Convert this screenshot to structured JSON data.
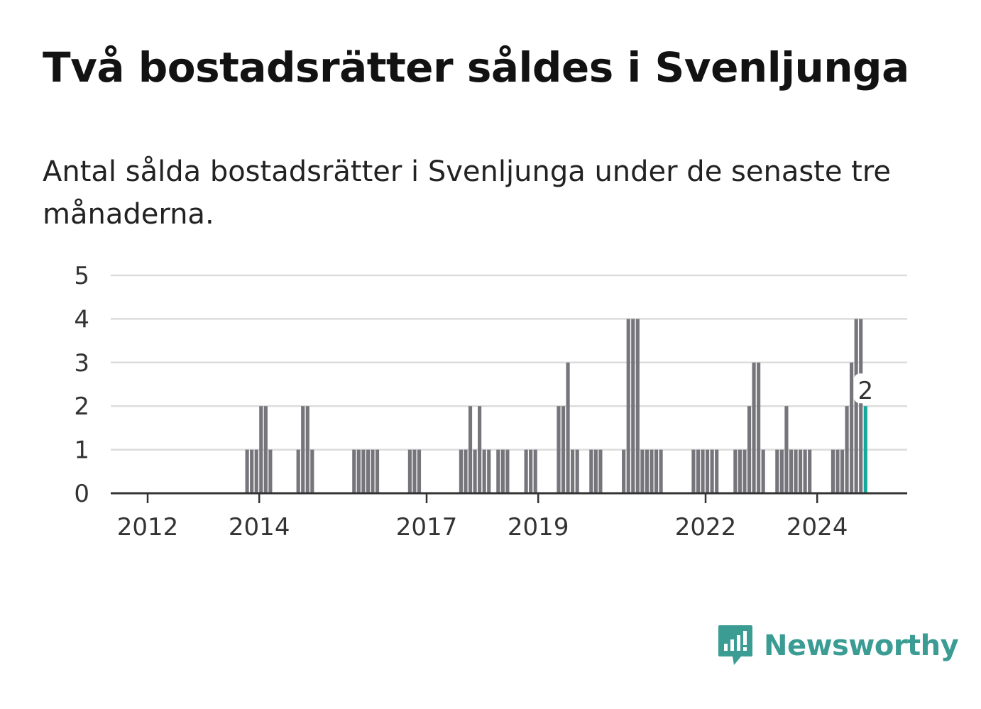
{
  "title": "Två bostadsrätter såldes i Svenljunga",
  "subtitle": "Antal sålda bostadsrätter i Svenljunga under de senaste tre månaderna.",
  "brand": {
    "name": "Newsworthy",
    "color": "#3a9c93",
    "icon": "newsworthy-logo-icon"
  },
  "chart_data": {
    "type": "bar",
    "ylim": [
      0,
      5
    ],
    "y_ticks": [
      "0",
      "1",
      "2",
      "3",
      "4",
      "5"
    ],
    "x_ticks": [
      {
        "label": "2012",
        "month": "2012-01"
      },
      {
        "label": "2014",
        "month": "2014-01"
      },
      {
        "label": "2017",
        "month": "2017-01"
      },
      {
        "label": "2019",
        "month": "2019-01"
      },
      {
        "label": "2022",
        "month": "2022-01"
      },
      {
        "label": "2024",
        "month": "2024-01"
      }
    ],
    "grid": true,
    "legend": "none",
    "bar_color": "#75757b",
    "highlight_color": "#14a89c",
    "highlight_label": "2",
    "series": [
      {
        "months": [
          "2013-10",
          "2013-11",
          "2013-12",
          "2014-01",
          "2014-02",
          "2014-03",
          "2014-04",
          "2014-05",
          "2014-09",
          "2014-10",
          "2014-11",
          "2014-12",
          "2015-09",
          "2015-10",
          "2015-11",
          "2015-12",
          "2016-01",
          "2016-02",
          "2016-09",
          "2016-10",
          "2016-11",
          "2017-08",
          "2017-09",
          "2017-10",
          "2017-11",
          "2017-12",
          "2018-01",
          "2018-02",
          "2018-04",
          "2018-05",
          "2018-06",
          "2018-10",
          "2018-11",
          "2018-12",
          "2019-05",
          "2019-06",
          "2019-07",
          "2019-08",
          "2019-09",
          "2019-10",
          "2019-12",
          "2020-01",
          "2020-02",
          "2020-07",
          "2020-08",
          "2020-09",
          "2020-10",
          "2020-11",
          "2020-12",
          "2021-01",
          "2021-02",
          "2021-03",
          "2021-10",
          "2021-11",
          "2021-12",
          "2022-01",
          "2022-02",
          "2022-03",
          "2022-07",
          "2022-08",
          "2022-09",
          "2022-10",
          "2022-11",
          "2022-12",
          "2023-01",
          "2023-04",
          "2023-05",
          "2023-06",
          "2023-07",
          "2023-08",
          "2023-09",
          "2023-10",
          "2023-11",
          "2024-04",
          "2024-05",
          "2024-06",
          "2024-07",
          "2024-08",
          "2024-09",
          "2024-10",
          "2024-11"
        ],
        "values": [
          1,
          1,
          1,
          2,
          2,
          1,
          0,
          0,
          1,
          2,
          2,
          1,
          1,
          1,
          1,
          1,
          1,
          1,
          1,
          1,
          1,
          1,
          1,
          2,
          1,
          2,
          1,
          1,
          1,
          1,
          1,
          1,
          1,
          1,
          2,
          2,
          3,
          1,
          1,
          0,
          1,
          1,
          1,
          1,
          4,
          4,
          4,
          1,
          1,
          1,
          1,
          1,
          1,
          1,
          1,
          1,
          1,
          1,
          1,
          1,
          1,
          2,
          3,
          3,
          1,
          1,
          1,
          2,
          1,
          1,
          1,
          1,
          1,
          1,
          1,
          1,
          2,
          3,
          4,
          4,
          2
        ]
      }
    ]
  }
}
